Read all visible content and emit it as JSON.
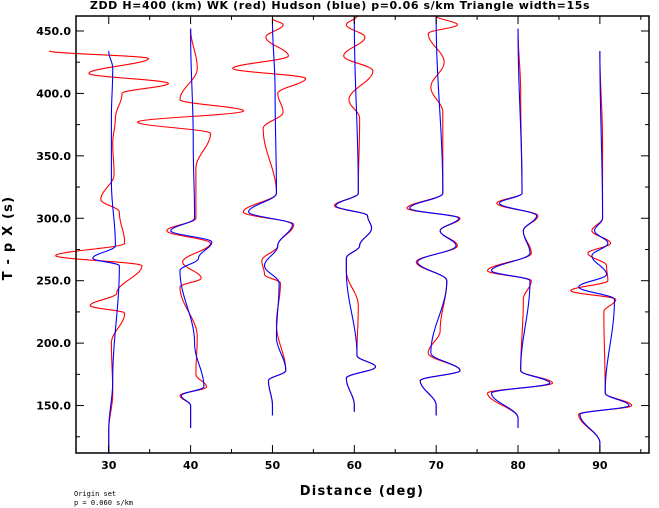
{
  "chart_data": {
    "type": "line",
    "title": "ZDD H=400 (km) WK (red) Hudson (blue) p=0.06 s/km Triangle width=15s",
    "xlabel": "Distance (deg)",
    "ylabel": "T - p X (s)",
    "xlim": [
      26.0,
      96.0
    ],
    "ylim": [
      112.0,
      462.0
    ],
    "x_ticks": [
      30,
      40,
      50,
      60,
      70,
      80,
      90
    ],
    "x_tick_labels": [
      "30",
      "40",
      "50",
      "60",
      "70",
      "80",
      "90"
    ],
    "y_ticks": [
      150,
      200,
      250,
      300,
      350,
      400,
      450
    ],
    "y_tick_labels": [
      "150.0",
      "200.0",
      "250.0",
      "300.0",
      "350.0",
      "400.0",
      "450.0"
    ],
    "grid": false,
    "series_colors": {
      "wk": "#ff0000",
      "hudson": "#0000ff"
    },
    "traces": [
      {
        "distance": 30,
        "t_start": 112,
        "t_end": 434,
        "wk": [
          [
            130,
            0.0
          ],
          [
            160,
            0.3
          ],
          [
            200,
            0.2
          ],
          [
            224,
            1.2
          ],
          [
            230,
            -1.4
          ],
          [
            240,
            0.6
          ],
          [
            262,
            2.5
          ],
          [
            270,
            -4.0
          ],
          [
            280,
            1.2
          ],
          [
            305,
            0.8
          ],
          [
            315,
            -0.6
          ],
          [
            335,
            0.4
          ],
          [
            360,
            0.3
          ],
          [
            380,
            0.5
          ],
          [
            400,
            1.0
          ],
          [
            408,
            4.5
          ],
          [
            416,
            -1.5
          ],
          [
            428,
            3.0
          ],
          [
            434,
            -4.5
          ]
        ],
        "hudson": [
          [
            130,
            0.0
          ],
          [
            170,
            0.3
          ],
          [
            262,
            0.8
          ],
          [
            268,
            -1.2
          ],
          [
            278,
            0.5
          ],
          [
            330,
            0.2
          ],
          [
            380,
            0.2
          ],
          [
            420,
            0.3
          ],
          [
            434,
            0.0
          ]
        ]
      },
      {
        "distance": 40,
        "t_start": 132,
        "t_end": 452,
        "wk": [
          [
            150,
            0.0
          ],
          [
            158,
            -0.8
          ],
          [
            165,
            1.2
          ],
          [
            175,
            0.4
          ],
          [
            205,
            0.5
          ],
          [
            245,
            -0.8
          ],
          [
            252,
            0.8
          ],
          [
            265,
            -0.6
          ],
          [
            280,
            1.5
          ],
          [
            290,
            -1.8
          ],
          [
            300,
            0.4
          ],
          [
            340,
            0.4
          ],
          [
            368,
            1.5
          ],
          [
            377,
            -4.0
          ],
          [
            386,
            4.0
          ],
          [
            395,
            -0.8
          ],
          [
            420,
            0.5
          ],
          [
            452,
            0.0
          ]
        ],
        "hudson": [
          [
            150,
            0.0
          ],
          [
            158,
            -0.7
          ],
          [
            165,
            1.0
          ],
          [
            200,
            0.3
          ],
          [
            258,
            -0.8
          ],
          [
            268,
            0.6
          ],
          [
            281,
            1.6
          ],
          [
            290,
            -1.5
          ],
          [
            300,
            0.3
          ],
          [
            360,
            0.2
          ],
          [
            450,
            0.0
          ]
        ]
      },
      {
        "distance": 50,
        "t_start": 142,
        "t_end": 460,
        "wk": [
          [
            150,
            0.0
          ],
          [
            170,
            -0.3
          ],
          [
            178,
            1.0
          ],
          [
            215,
            0.3
          ],
          [
            248,
            0.6
          ],
          [
            255,
            -0.6
          ],
          [
            266,
            -0.8
          ],
          [
            278,
            0.4
          ],
          [
            295,
            1.6
          ],
          [
            305,
            -2.2
          ],
          [
            320,
            0.3
          ],
          [
            372,
            -0.7
          ],
          [
            385,
            0.8
          ],
          [
            400,
            0.4
          ],
          [
            412,
            2.5
          ],
          [
            420,
            -3.0
          ],
          [
            430,
            1.2
          ],
          [
            445,
            -0.5
          ],
          [
            455,
            0.8
          ],
          [
            460,
            0.0
          ]
        ],
        "hudson": [
          [
            150,
            0.0
          ],
          [
            170,
            -0.3
          ],
          [
            178,
            1.0
          ],
          [
            205,
            0.3
          ],
          [
            248,
            0.5
          ],
          [
            262,
            -0.6
          ],
          [
            278,
            0.4
          ],
          [
            295,
            1.5
          ],
          [
            305,
            -1.8
          ],
          [
            320,
            0.3
          ],
          [
            400,
            0.2
          ],
          [
            460,
            0.0
          ]
        ]
      },
      {
        "distance": 60,
        "t_start": 145,
        "t_end": 462,
        "wk": [
          [
            150,
            0.0
          ],
          [
            172,
            -0.6
          ],
          [
            181,
            1.6
          ],
          [
            190,
            0.2
          ],
          [
            230,
            0.3
          ],
          [
            258,
            -0.6
          ],
          [
            268,
            -0.6
          ],
          [
            278,
            0.4
          ],
          [
            292,
            1.3
          ],
          [
            302,
            1.0
          ],
          [
            310,
            -1.5
          ],
          [
            320,
            0.3
          ],
          [
            380,
            0.4
          ],
          [
            395,
            -0.4
          ],
          [
            418,
            1.4
          ],
          [
            430,
            -0.8
          ],
          [
            445,
            0.8
          ],
          [
            455,
            -0.6
          ],
          [
            462,
            0.2
          ]
        ],
        "hudson": [
          [
            150,
            0.0
          ],
          [
            172,
            -0.6
          ],
          [
            181,
            1.6
          ],
          [
            190,
            0.2
          ],
          [
            258,
            -0.6
          ],
          [
            268,
            -0.6
          ],
          [
            278,
            0.4
          ],
          [
            292,
            1.3
          ],
          [
            302,
            1.0
          ],
          [
            310,
            -1.4
          ],
          [
            320,
            0.3
          ],
          [
            460,
            0.0
          ]
        ]
      },
      {
        "distance": 70,
        "t_start": 142,
        "t_end": 462,
        "wk": [
          [
            150,
            0.0
          ],
          [
            170,
            -1.2
          ],
          [
            178,
            1.8
          ],
          [
            192,
            -0.6
          ],
          [
            210,
            0.3
          ],
          [
            250,
            0.8
          ],
          [
            265,
            -1.5
          ],
          [
            278,
            1.6
          ],
          [
            290,
            0.3
          ],
          [
            300,
            1.8
          ],
          [
            308,
            -2.2
          ],
          [
            320,
            0.5
          ],
          [
            385,
            0.5
          ],
          [
            405,
            -0.4
          ],
          [
            425,
            0.6
          ],
          [
            448,
            -0.6
          ],
          [
            455,
            1.6
          ],
          [
            462,
            0.0
          ]
        ],
        "hudson": [
          [
            150,
            0.0
          ],
          [
            170,
            -1.2
          ],
          [
            178,
            1.8
          ],
          [
            192,
            -0.4
          ],
          [
            250,
            0.8
          ],
          [
            265,
            -1.4
          ],
          [
            278,
            1.5
          ],
          [
            290,
            0.3
          ],
          [
            300,
            1.7
          ],
          [
            308,
            -2.0
          ],
          [
            320,
            0.5
          ],
          [
            460,
            0.0
          ]
        ]
      },
      {
        "distance": 80,
        "t_start": 132,
        "t_end": 452,
        "wk": [
          [
            140,
            0.0
          ],
          [
            160,
            -2.3
          ],
          [
            168,
            2.6
          ],
          [
            178,
            0.2
          ],
          [
            235,
            0.4
          ],
          [
            250,
            1.0
          ],
          [
            258,
            -2.3
          ],
          [
            272,
            1.0
          ],
          [
            290,
            0.4
          ],
          [
            302,
            1.5
          ],
          [
            312,
            -1.6
          ],
          [
            320,
            0.3
          ],
          [
            400,
            0.2
          ],
          [
            452,
            0.0
          ]
        ],
        "hudson": [
          [
            140,
            0.0
          ],
          [
            160,
            -2.0
          ],
          [
            168,
            2.4
          ],
          [
            178,
            0.2
          ],
          [
            250,
            0.9
          ],
          [
            258,
            -2.0
          ],
          [
            272,
            0.9
          ],
          [
            290,
            0.4
          ],
          [
            302,
            1.4
          ],
          [
            312,
            -1.4
          ],
          [
            320,
            0.3
          ],
          [
            452,
            0.0
          ]
        ]
      },
      {
        "distance": 90,
        "t_start": 112,
        "t_end": 434,
        "wk": [
          [
            120,
            0.0
          ],
          [
            143,
            -1.6
          ],
          [
            150,
            2.4
          ],
          [
            160,
            0.4
          ],
          [
            225,
            0.3
          ],
          [
            235,
            1.2
          ],
          [
            242,
            -2.2
          ],
          [
            250,
            0.6
          ],
          [
            262,
            0.5
          ],
          [
            272,
            -0.9
          ],
          [
            280,
            0.8
          ],
          [
            290,
            -0.6
          ],
          [
            300,
            0.2
          ],
          [
            360,
            0.2
          ],
          [
            434,
            0.0
          ]
        ],
        "hudson": [
          [
            120,
            0.0
          ],
          [
            143,
            -1.5
          ],
          [
            150,
            2.2
          ],
          [
            160,
            0.4
          ],
          [
            235,
            1.1
          ],
          [
            245,
            -1.6
          ],
          [
            255,
            0.5
          ],
          [
            270,
            -0.6
          ],
          [
            280,
            0.6
          ],
          [
            290,
            -0.4
          ],
          [
            300,
            0.2
          ],
          [
            434,
            0.0
          ]
        ]
      }
    ]
  },
  "footnote": {
    "line1": "Origin set",
    "line2": "p = 0.060 s/km"
  }
}
